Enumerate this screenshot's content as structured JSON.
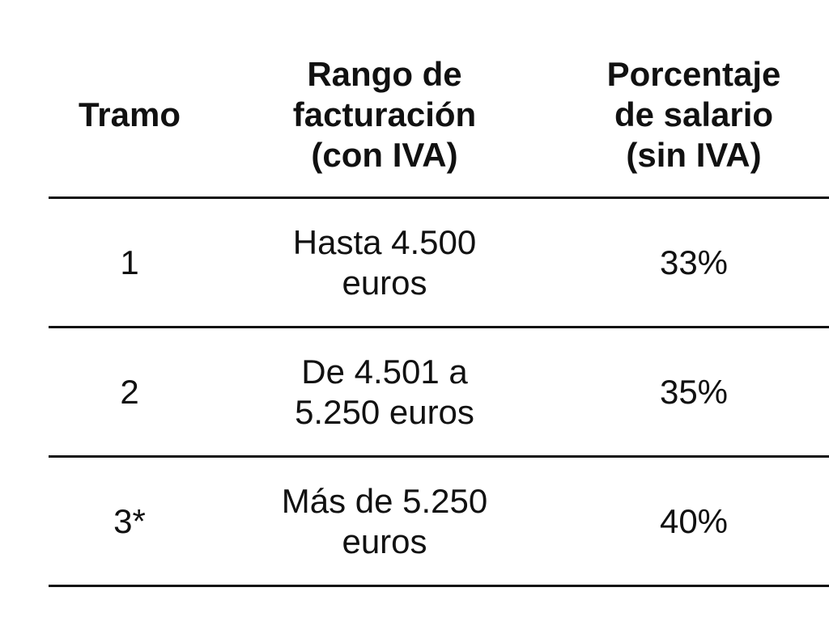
{
  "table": {
    "header": [
      "Tramo",
      "Rango de facturación (con IVA)",
      "Porcentaje de salario (sin IVA)"
    ],
    "rows": [
      [
        "1",
        "Hasta 4.500 euros",
        "33%"
      ],
      [
        "2",
        "De 4.501 a 5.250 euros",
        "35%"
      ],
      [
        "3*",
        "Más de 5.250 euros",
        "40%"
      ]
    ]
  }
}
